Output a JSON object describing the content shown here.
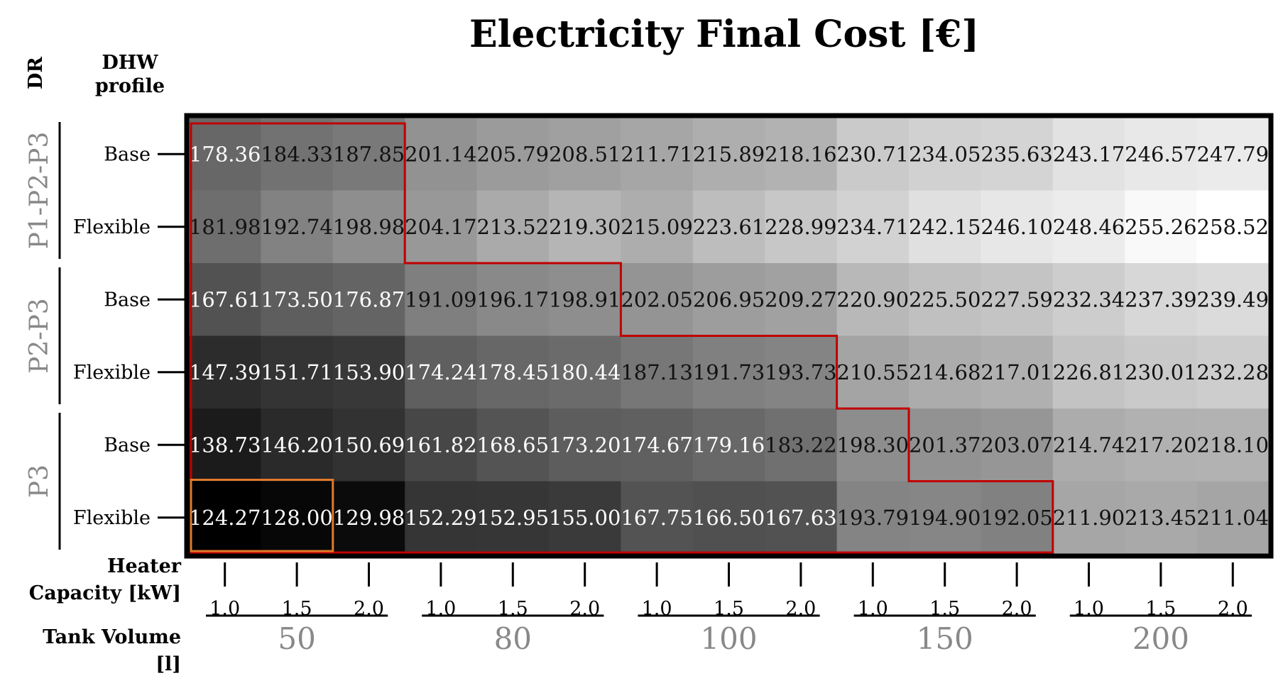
{
  "title": "Electricity Final Cost [€]",
  "row_header_dr": "DR",
  "row_header_dhw": "DHW profile",
  "heater_label": "Heater Capacity [kW]",
  "tank_label": "Tank Volume [l]",
  "colors": {
    "low": "#000000",
    "high": "#ffffff",
    "boundary_red": "#c00000",
    "highlight_orange": "#e07a2a",
    "group_label_gray": "#888888"
  },
  "chart_data": {
    "type": "heatmap",
    "title": "Electricity Final Cost [€]",
    "dr_groups": [
      {
        "label": "P1-P2-P3",
        "rows": [
          "Base",
          "Flexible"
        ]
      },
      {
        "label": "P2-P3",
        "rows": [
          "Base",
          "Flexible"
        ]
      },
      {
        "label": "P3",
        "rows": [
          "Base",
          "Flexible"
        ]
      }
    ],
    "tank_volumes": [
      "50",
      "80",
      "100",
      "150",
      "200"
    ],
    "heater_capacities": [
      "1.0",
      "1.5",
      "2.0"
    ],
    "values": [
      [
        "178.36",
        "184.33",
        "187.85",
        "201.14",
        "205.79",
        "208.51",
        "211.71",
        "215.89",
        "218.16",
        "230.71",
        "234.05",
        "235.63",
        "243.17",
        "246.57",
        "247.79"
      ],
      [
        "181.98",
        "192.74",
        "198.98",
        "204.17",
        "213.52",
        "219.30",
        "215.09",
        "223.61",
        "228.99",
        "234.71",
        "242.15",
        "246.10",
        "248.46",
        "255.26",
        "258.52"
      ],
      [
        "167.61",
        "173.50",
        "176.87",
        "191.09",
        "196.17",
        "198.91",
        "202.05",
        "206.95",
        "209.27",
        "220.90",
        "225.50",
        "227.59",
        "232.34",
        "237.39",
        "239.49"
      ],
      [
        "147.39",
        "151.71",
        "153.90",
        "174.24",
        "178.45",
        "180.44",
        "187.13",
        "191.73",
        "193.73",
        "210.55",
        "214.68",
        "217.01",
        "226.81",
        "230.01",
        "232.28"
      ],
      [
        "138.73",
        "146.20",
        "150.69",
        "161.82",
        "168.65",
        "173.20",
        "174.67",
        "179.16",
        "183.22",
        "198.30",
        "201.37",
        "203.07",
        "214.74",
        "217.20",
        "218.10"
      ],
      [
        "124.27",
        "128.00",
        "129.98",
        "152.29",
        "152.95",
        "155.00",
        "167.75",
        "166.50",
        "167.63",
        "193.79",
        "194.90",
        "192.05",
        "211.90",
        "213.45",
        "211.04"
      ]
    ],
    "highlighted_cells": [
      [
        5,
        0
      ],
      [
        5,
        1
      ]
    ]
  }
}
